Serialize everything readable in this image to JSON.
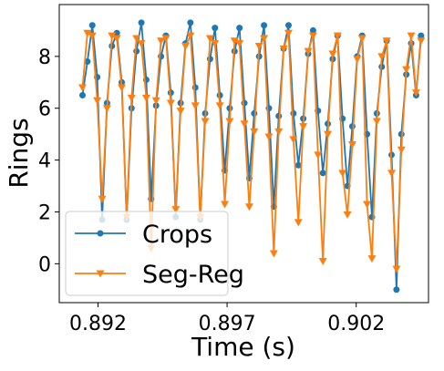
{
  "chart_data": {
    "type": "line",
    "xlabel": "Time (s)",
    "ylabel": "Rings",
    "x": [
      0.8914,
      0.89159,
      0.89178,
      0.89197,
      0.89216,
      0.89235,
      0.89254,
      0.89273,
      0.89292,
      0.89311,
      0.8933,
      0.89349,
      0.89368,
      0.89387,
      0.89406,
      0.89425,
      0.89444,
      0.89463,
      0.89482,
      0.89501,
      0.8952,
      0.89539,
      0.89558,
      0.89577,
      0.89596,
      0.89615,
      0.89634,
      0.89653,
      0.89672,
      0.89691,
      0.8971,
      0.89729,
      0.89748,
      0.89767,
      0.89786,
      0.89805,
      0.89824,
      0.89843,
      0.89862,
      0.89881,
      0.899,
      0.89919,
      0.89938,
      0.89957,
      0.89976,
      0.89995,
      0.90014,
      0.90033,
      0.90052,
      0.90071,
      0.9009,
      0.90109,
      0.90128,
      0.90147,
      0.90166,
      0.90185,
      0.90204,
      0.90223,
      0.90242,
      0.90261,
      0.9028,
      0.90299,
      0.90318,
      0.90337,
      0.90356,
      0.90375,
      0.90394,
      0.90413,
      0.90432,
      0.90451
    ],
    "series": [
      {
        "name": "Crops",
        "color": "#1f77b4",
        "marker": "circle",
        "values": [
          6.5,
          7.8,
          9.2,
          7.2,
          1.7,
          6.2,
          8.4,
          8.9,
          7.0,
          1.7,
          6.0,
          8.2,
          9.3,
          7.1,
          2.5,
          6.1,
          8.0,
          8.8,
          6.6,
          1.8,
          6.2,
          8.5,
          9.3,
          6.8,
          1.7,
          5.8,
          7.9,
          9.1,
          6.5,
          3.6,
          6.0,
          8.2,
          9.1,
          6.2,
          3.3,
          5.8,
          8.0,
          9.2,
          6.0,
          2.2,
          5.7,
          8.3,
          9.2,
          5.8,
          3.8,
          5.6,
          8.1,
          9.0,
          5.9,
          3.5,
          5.4,
          7.9,
          8.8,
          5.6,
          3.0,
          5.3,
          8.0,
          8.8,
          5.0,
          1.8,
          5.8,
          7.6,
          8.6,
          4.2,
          -1.0,
          5.0,
          7.3,
          8.5,
          6.5,
          8.8
        ]
      },
      {
        "name": "Seg-Reg",
        "color": "#ff7f0e",
        "marker": "triangle-down",
        "values": [
          6.8,
          8.9,
          8.8,
          6.3,
          2.5,
          6.0,
          8.8,
          8.7,
          6.8,
          1.8,
          6.4,
          8.7,
          8.5,
          6.4,
          0.6,
          6.3,
          8.6,
          8.7,
          6.2,
          2.1,
          5.9,
          8.4,
          8.8,
          6.1,
          1.8,
          5.5,
          8.7,
          8.5,
          6.1,
          2.3,
          5.5,
          8.6,
          8.5,
          5.4,
          2.2,
          5.1,
          8.4,
          8.7,
          4.9,
          0.4,
          5.1,
          8.3,
          8.9,
          4.8,
          1.6,
          5.3,
          8.2,
          8.8,
          4.2,
          0.1,
          5.0,
          8.1,
          8.8,
          3.5,
          1.9,
          4.6,
          7.9,
          8.7,
          2.3,
          0.2,
          5.5,
          8.0,
          8.6,
          3.5,
          -0.2,
          4.4,
          7.5,
          8.8,
          6.6,
          8.6
        ]
      }
    ],
    "xlim": [
      0.8905,
      0.9048
    ],
    "ylim": [
      -1.5,
      10
    ],
    "xticks": [
      0.892,
      0.897,
      0.902
    ],
    "yticks": [
      0,
      2,
      4,
      6,
      8
    ],
    "legend": "lower left"
  }
}
